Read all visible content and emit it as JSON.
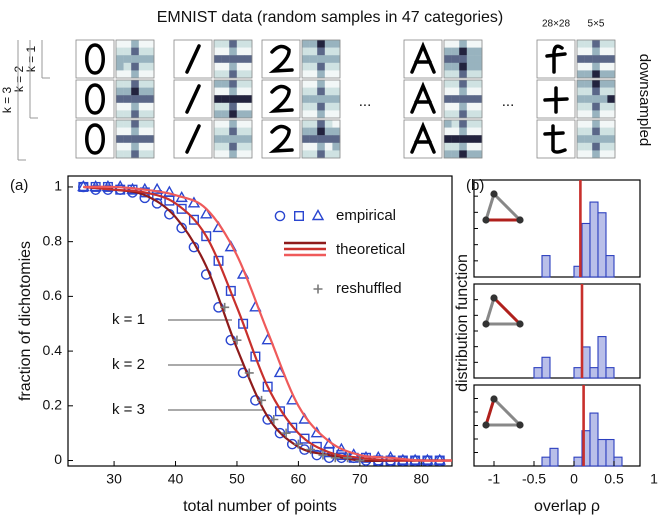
{
  "header": {
    "title": "EMNIST data (random samples in 47 categories)",
    "size_labels": [
      "28×28",
      "5×5"
    ],
    "side_label": "downsampled",
    "row_labels": [
      "k = 1",
      "k = 2",
      "k = 3"
    ],
    "ellipsis": "..."
  },
  "chart_data": [
    {
      "type": "line",
      "panel_label": "(a)",
      "xlabel": "total number of points",
      "ylabel": "fraction of dichotomies",
      "xlim": [
        22.5,
        85
      ],
      "ylim": [
        -0.02,
        1.04
      ],
      "xticks": [
        30,
        40,
        50,
        60,
        70,
        80
      ],
      "yticks": [
        0,
        0.2,
        0.4,
        0.6,
        0.8,
        1
      ],
      "annotations": [
        "k = 1",
        "k = 2",
        "k = 3"
      ],
      "groups": [
        {
          "name": "empirical",
          "style": "markers",
          "series": [
            {
              "marker": "circle",
              "color": "#2a46d0",
              "x": [
                25,
                27,
                29,
                31,
                33,
                35,
                37,
                39,
                41,
                43,
                45,
                47,
                49,
                51,
                53,
                55,
                57,
                59,
                61,
                63,
                65,
                67,
                69,
                71,
                73,
                75,
                77,
                79,
                81,
                83
              ],
              "values": [
                1,
                0.99,
                0.99,
                0.99,
                0.98,
                0.96,
                0.94,
                0.9,
                0.85,
                0.78,
                0.68,
                0.56,
                0.44,
                0.32,
                0.22,
                0.15,
                0.1,
                0.06,
                0.04,
                0.02,
                0.01,
                0.01,
                0.01,
                0,
                0,
                0,
                0,
                0,
                0,
                0
              ]
            },
            {
              "marker": "square",
              "color": "#2a46d0",
              "x": [
                25,
                27,
                29,
                31,
                33,
                35,
                37,
                39,
                41,
                43,
                45,
                47,
                49,
                51,
                53,
                55,
                57,
                59,
                61,
                63,
                65,
                67,
                69,
                71,
                73,
                75,
                77,
                79,
                81,
                83
              ],
              "values": [
                1,
                1,
                1,
                0.99,
                0.99,
                0.98,
                0.97,
                0.95,
                0.92,
                0.88,
                0.82,
                0.73,
                0.62,
                0.5,
                0.38,
                0.27,
                0.18,
                0.12,
                0.08,
                0.05,
                0.03,
                0.02,
                0.01,
                0.01,
                0,
                0,
                0,
                0,
                0,
                0
              ]
            },
            {
              "marker": "triangle",
              "color": "#2a46d0",
              "x": [
                25,
                27,
                29,
                31,
                33,
                35,
                37,
                39,
                41,
                43,
                45,
                47,
                49,
                51,
                53,
                55,
                57,
                59,
                61,
                63,
                65,
                67,
                69,
                71,
                73,
                75,
                77,
                79,
                81,
                83
              ],
              "values": [
                1,
                1,
                1,
                1,
                0.99,
                0.99,
                0.99,
                0.98,
                0.96,
                0.94,
                0.9,
                0.85,
                0.78,
                0.68,
                0.56,
                0.44,
                0.32,
                0.22,
                0.15,
                0.1,
                0.06,
                0.04,
                0.02,
                0.01,
                0.01,
                0.01,
                0,
                0,
                0,
                0
              ]
            }
          ]
        },
        {
          "name": "theoretical",
          "style": "line",
          "series": [
            {
              "color": "#8e1b1b",
              "x": [
                25,
                30,
                35,
                40,
                45,
                50,
                55,
                60,
                65,
                70,
                75,
                80,
                85
              ],
              "values": [
                1,
                0.99,
                0.97,
                0.89,
                0.71,
                0.41,
                0.16,
                0.05,
                0.02,
                0,
                0,
                0,
                0
              ]
            },
            {
              "color": "#c8302c",
              "x": [
                25,
                30,
                35,
                40,
                45,
                50,
                55,
                60,
                65,
                70,
                75,
                80,
                85
              ],
              "values": [
                1,
                0.99,
                0.98,
                0.94,
                0.82,
                0.56,
                0.27,
                0.1,
                0.03,
                0.01,
                0,
                0,
                0
              ]
            },
            {
              "color": "#ef5a5a",
              "x": [
                25,
                30,
                35,
                40,
                45,
                50,
                55,
                60,
                65,
                70,
                75,
                80,
                85
              ],
              "values": [
                1,
                1,
                0.99,
                0.97,
                0.92,
                0.75,
                0.47,
                0.2,
                0.07,
                0.02,
                0.01,
                0,
                0
              ]
            }
          ]
        },
        {
          "name": "reshuffled",
          "style": "markers",
          "series": [
            {
              "marker": "plus",
              "color": "#7a7a7a",
              "x": [
                48,
                50,
                52,
                54,
                56,
                58,
                60,
                62,
                64,
                66,
                68,
                70
              ],
              "values": [
                0.56,
                0.44,
                0.32,
                0.22,
                0.15,
                0.1,
                0.06,
                0.04,
                0.02,
                0.01,
                0.01,
                0
              ]
            }
          ]
        }
      ]
    },
    {
      "type": "histogram",
      "panel_label": "(b)",
      "xlabel": "overlap ρ",
      "ylabel": "distribution function",
      "xlim": [
        -1.25,
        0.825
      ],
      "ylim": [
        0,
        8.5
      ],
      "xticks": [
        -1,
        -0.5,
        0,
        0.5,
        1
      ],
      "color": "#b9bfe9",
      "bins": [
        -0.7,
        -0.6,
        -0.5,
        -0.4,
        -0.3,
        -0.2,
        -0.1,
        0,
        0.1,
        0.2,
        0.3,
        0.4,
        0.5,
        0.6,
        0.7
      ],
      "panels": [
        {
          "counts": [
            0,
            0,
            0,
            2,
            0,
            0,
            0,
            1,
            5,
            7,
            6,
            2,
            0,
            0
          ],
          "marker_line": 0.08
        },
        {
          "counts": [
            0,
            0,
            1,
            2,
            0,
            0,
            0,
            1,
            3,
            1,
            4,
            1,
            0,
            0
          ],
          "marker_line": 0.1
        },
        {
          "counts": [
            0,
            0,
            0,
            1,
            2,
            0,
            0,
            1,
            4,
            6,
            3,
            3,
            1,
            0
          ],
          "marker_line": 0.12
        }
      ]
    }
  ]
}
